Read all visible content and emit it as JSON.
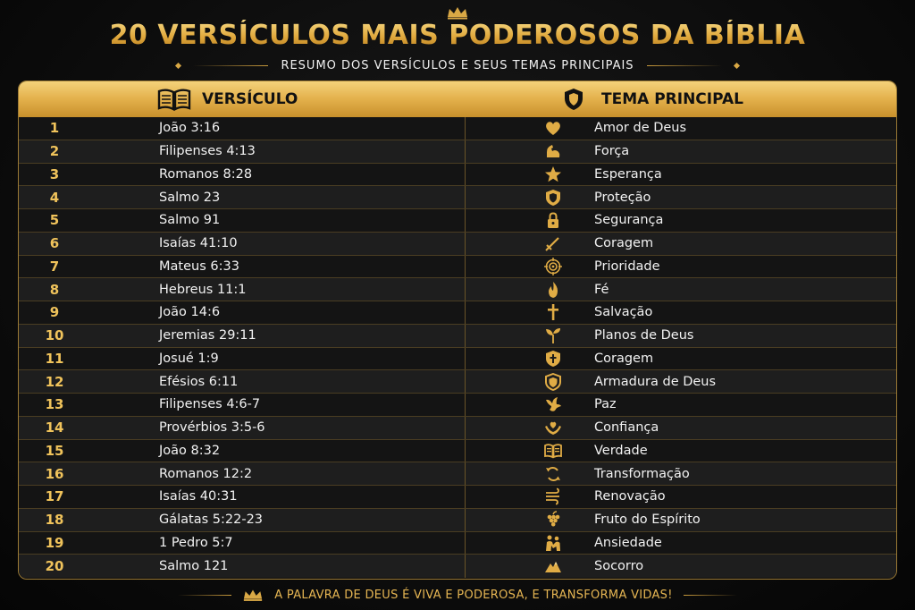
{
  "title": "20 VERSÍCULOS MAIS PODEROSOS DA BÍBLIA",
  "subtitle": "RESUMO DOS VERSÍCULOS E SEUS TEMAS PRINCIPAIS",
  "accent_color": "#e2b24e",
  "header": {
    "verse_label": "VERSÍCULO",
    "theme_label": "TEMA PRINCIPAL",
    "verse_icon": "open-book-icon",
    "theme_icon": "shield-icon"
  },
  "rows": [
    {
      "num": "1",
      "ref": "João 3:16",
      "theme": "Amor de Deus",
      "icon": "heart-icon"
    },
    {
      "num": "2",
      "ref": "Filipenses 4:13",
      "theme": "Força",
      "icon": "flexed-arm-icon"
    },
    {
      "num": "3",
      "ref": "Romanos 8:28",
      "theme": "Esperança",
      "icon": "star-icon"
    },
    {
      "num": "4",
      "ref": "Salmo 23",
      "theme": "Proteção",
      "icon": "shield-icon"
    },
    {
      "num": "5",
      "ref": "Salmo 91",
      "theme": "Segurança",
      "icon": "lock-icon"
    },
    {
      "num": "6",
      "ref": "Isaías 41:10",
      "theme": "Coragem",
      "icon": "sword-icon"
    },
    {
      "num": "7",
      "ref": "Mateus 6:33",
      "theme": "Prioridade",
      "icon": "target-icon"
    },
    {
      "num": "8",
      "ref": "Hebreus 11:1",
      "theme": "Fé",
      "icon": "flame-icon"
    },
    {
      "num": "9",
      "ref": "João 14:6",
      "theme": "Salvação",
      "icon": "cross-icon"
    },
    {
      "num": "10",
      "ref": "Jeremias 29:11",
      "theme": "Planos de Deus",
      "icon": "sprout-icon"
    },
    {
      "num": "11",
      "ref": "Josué 1:9",
      "theme": "Coragem",
      "icon": "shield-cross-icon"
    },
    {
      "num": "12",
      "ref": "Efésios 6:11",
      "theme": "Armadura de Deus",
      "icon": "armor-shield-icon"
    },
    {
      "num": "13",
      "ref": "Filipenses 4:6-7",
      "theme": "Paz",
      "icon": "dove-icon"
    },
    {
      "num": "14",
      "ref": "Provérbios 3:5-6",
      "theme": "Confiança",
      "icon": "hands-heart-icon"
    },
    {
      "num": "15",
      "ref": "João 8:32",
      "theme": "Verdade",
      "icon": "open-book-icon"
    },
    {
      "num": "16",
      "ref": "Romanos 12:2",
      "theme": "Transformação",
      "icon": "cycle-arrows-icon"
    },
    {
      "num": "17",
      "ref": "Isaías 40:31",
      "theme": "Renovação",
      "icon": "wind-icon"
    },
    {
      "num": "18",
      "ref": "Gálatas 5:22-23",
      "theme": "Fruto do Espírito",
      "icon": "grapes-icon"
    },
    {
      "num": "19",
      "ref": "1 Pedro 5:7",
      "theme": "Ansiedade",
      "icon": "comfort-people-icon"
    },
    {
      "num": "20",
      "ref": "Salmo 121",
      "theme": "Socorro",
      "icon": "mountain-icon"
    }
  ],
  "footer": "A PALAVRA DE DEUS É VIVA E PODEROSA, E TRANSFORMA VIDAS!"
}
